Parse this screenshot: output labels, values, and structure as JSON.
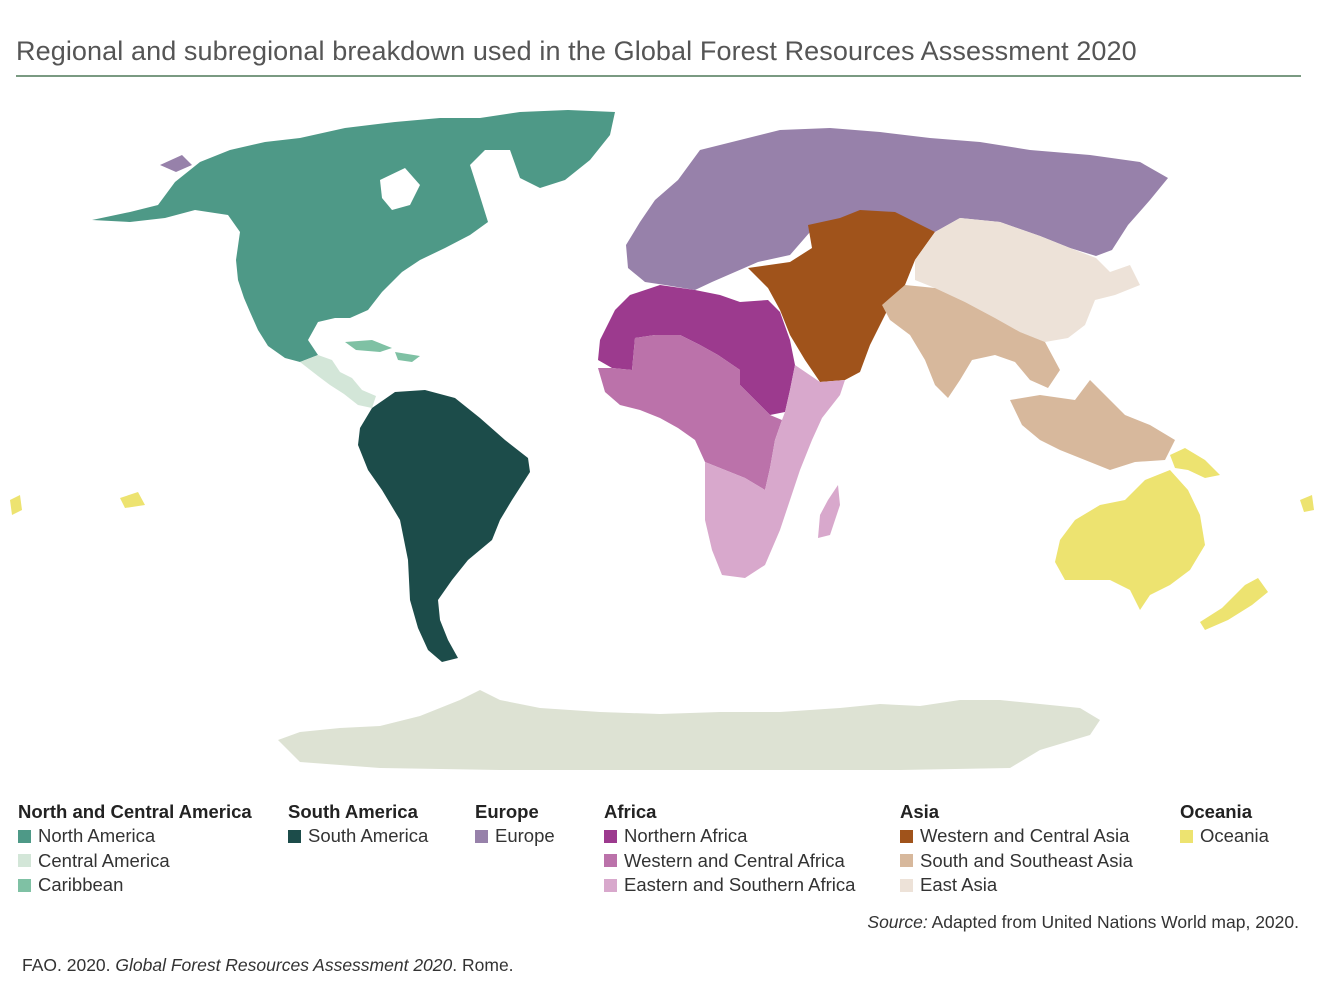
{
  "title": "Regional and subregional breakdown used in the Global Forest Resources Assessment 2020",
  "colors": {
    "north_america": "#4e9987",
    "central_america": "#d3e6d8",
    "caribbean": "#7fc1a4",
    "south_america": "#1c4c4a",
    "europe": "#9781aa",
    "northern_africa": "#9c3a8e",
    "western_central_africa": "#bb72aa",
    "eastern_southern_africa": "#d8a8cc",
    "western_central_asia": "#a0531b",
    "south_southeast_asia": "#d7b89c",
    "east_asia": "#ede2d8",
    "oceania": "#ede370",
    "antarctica": "#dde2d3"
  },
  "legend": [
    {
      "heading": "North and Central America",
      "items": [
        {
          "label": "North America",
          "color": "#4e9987"
        },
        {
          "label": "Central America",
          "color": "#d3e6d8"
        },
        {
          "label": "Caribbean",
          "color": "#7fc1a4"
        }
      ]
    },
    {
      "heading": "South America",
      "items": [
        {
          "label": "South America",
          "color": "#1c4c4a"
        }
      ]
    },
    {
      "heading": "Europe",
      "items": [
        {
          "label": "Europe",
          "color": "#9781aa"
        }
      ]
    },
    {
      "heading": "Africa",
      "items": [
        {
          "label": "Northern Africa",
          "color": "#9c3a8e"
        },
        {
          "label": "Western and Central Africa",
          "color": "#bb72aa"
        },
        {
          "label": "Eastern and Southern Africa",
          "color": "#d8a8cc"
        }
      ]
    },
    {
      "heading": "Asia",
      "items": [
        {
          "label": "Western and Central Asia",
          "color": "#a0531b"
        },
        {
          "label": "South and Southeast Asia",
          "color": "#d7b89c"
        },
        {
          "label": "East Asia",
          "color": "#ede2d8"
        }
      ]
    },
    {
      "heading": "Oceania",
      "items": [
        {
          "label": "Oceania",
          "color": "#ede370"
        }
      ]
    }
  ],
  "source": {
    "label": "Source:",
    "text": " Adapted from United Nations World map, 2020."
  },
  "citation": {
    "prefix": "FAO. 2020. ",
    "title": "Global Forest Resources Assessment 2020",
    "suffix": ". Rome."
  }
}
